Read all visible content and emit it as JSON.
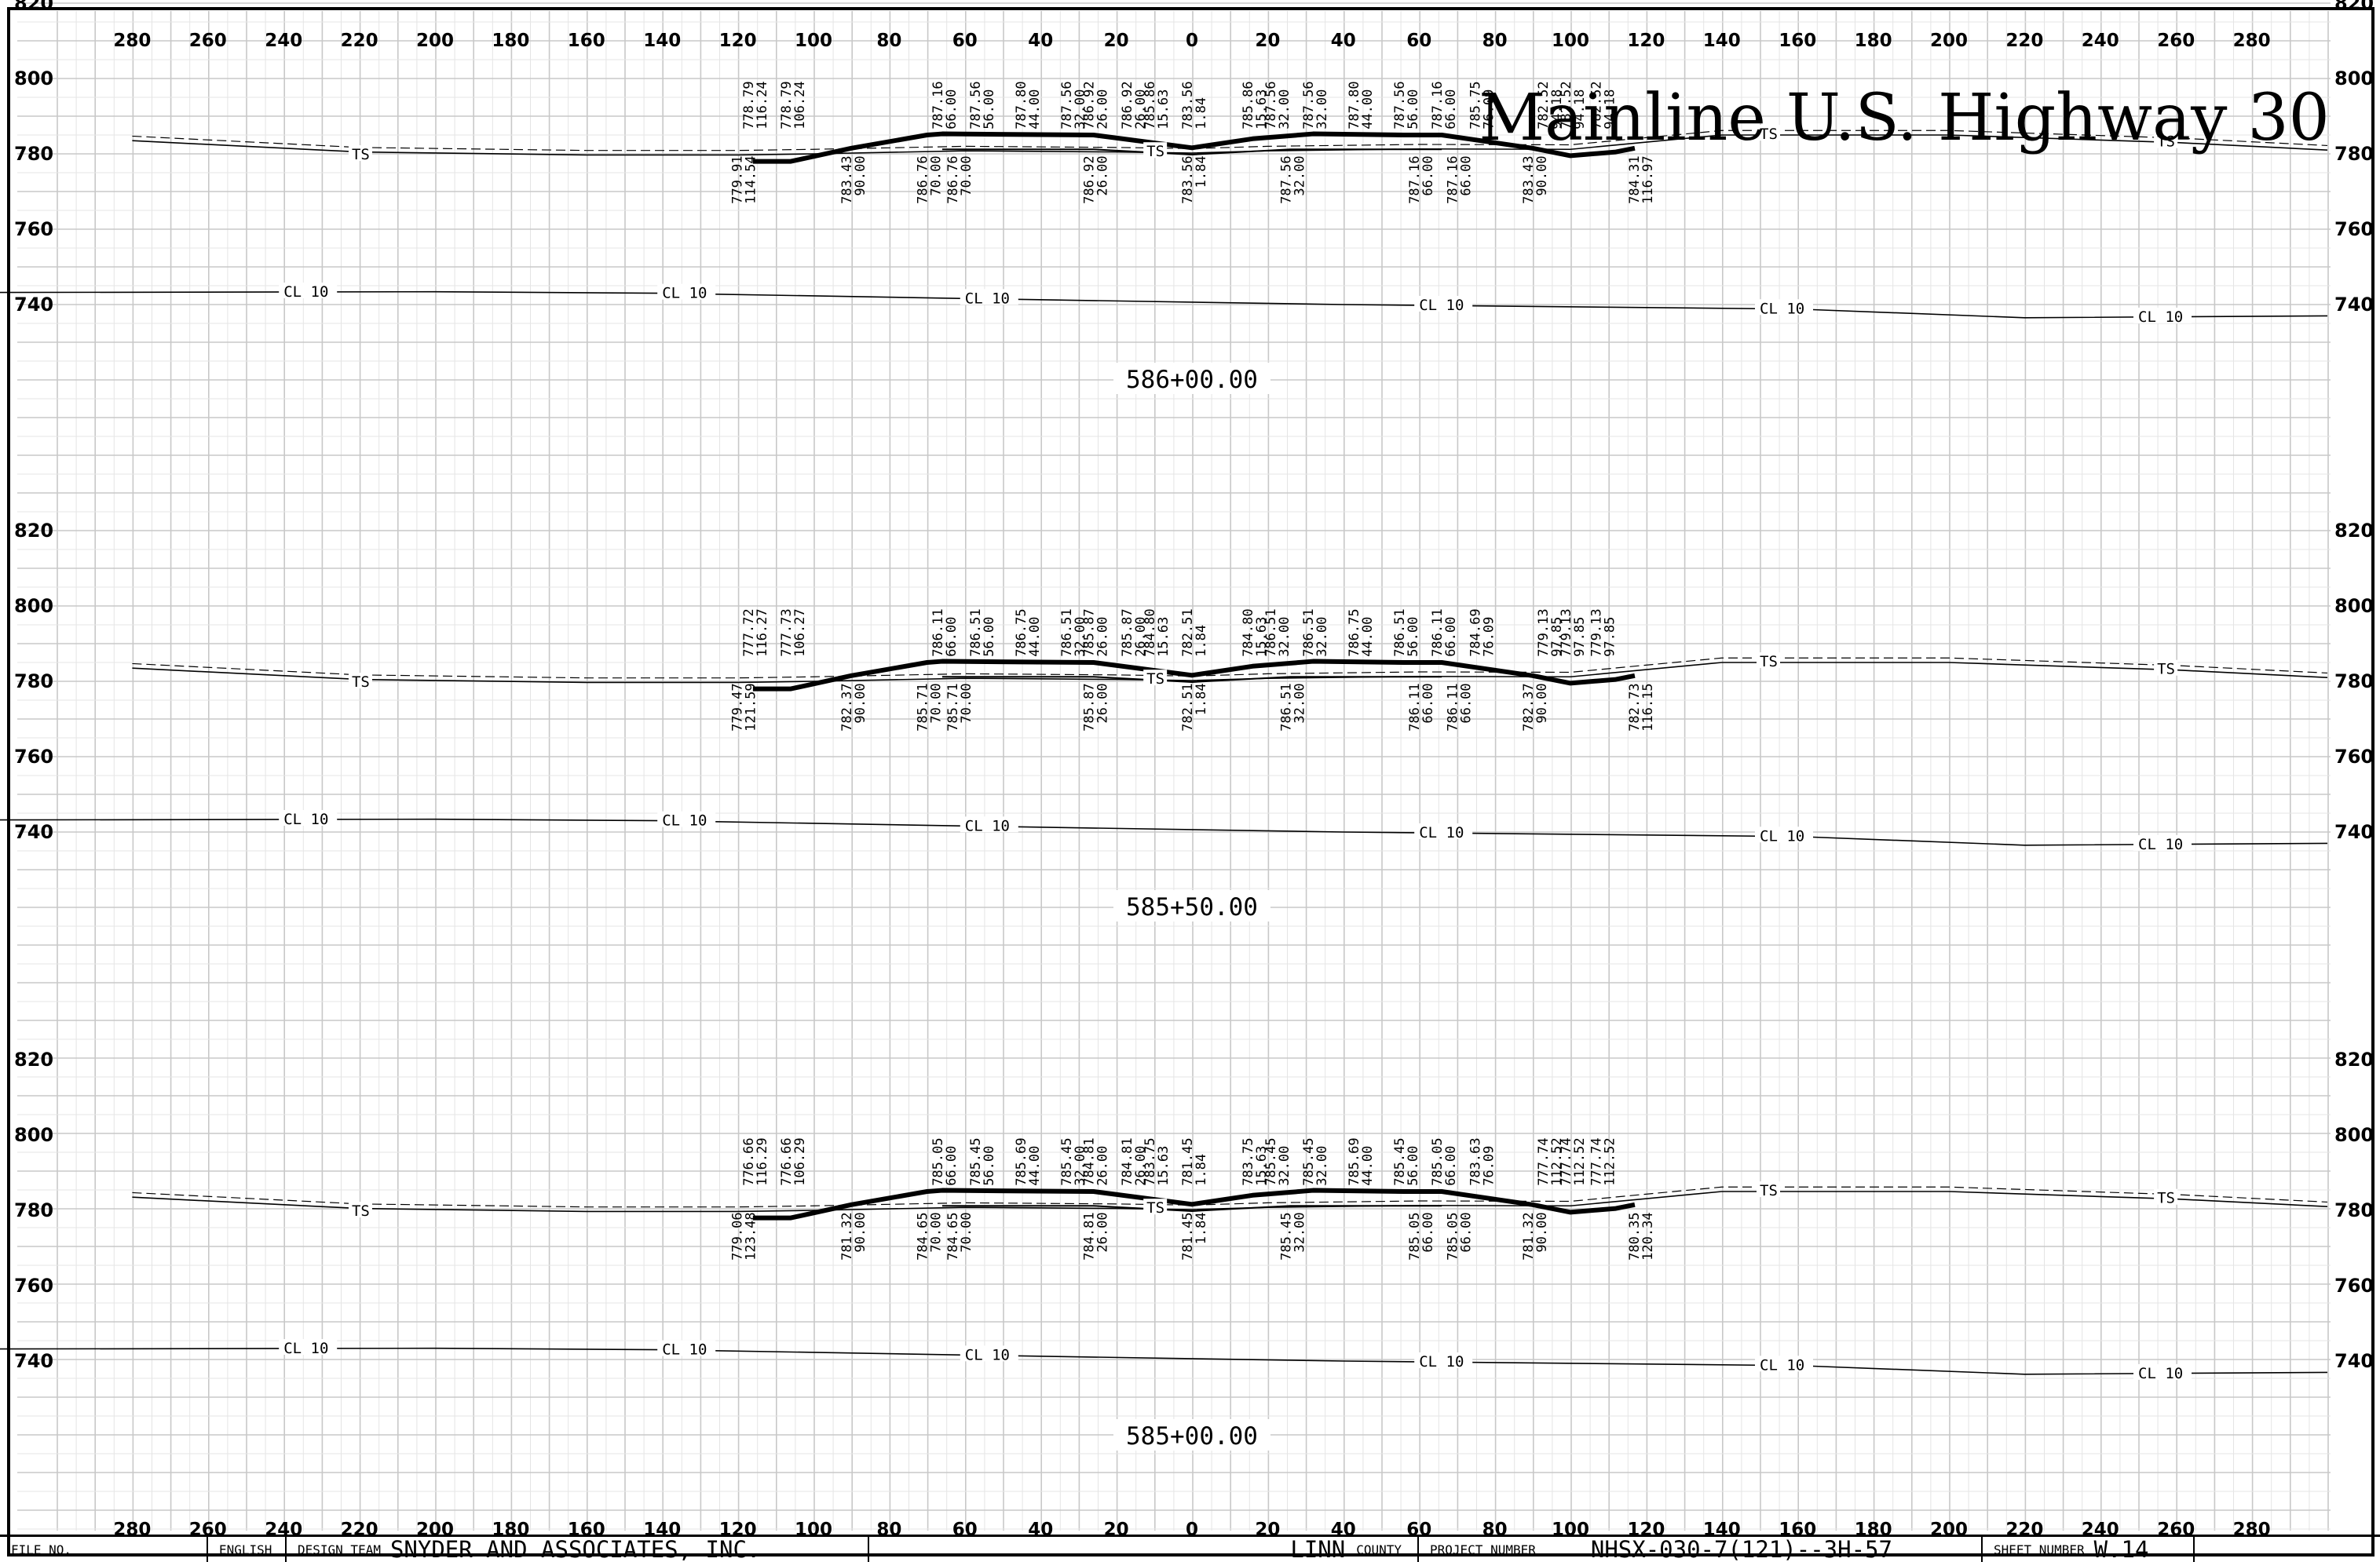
{
  "sheet_title": "Mainline U.S. Highway 30",
  "offsets_top": [
    "280",
    "260",
    "240",
    "220",
    "200",
    "180",
    "160",
    "140",
    "120",
    "100",
    "80",
    "60",
    "40",
    "20",
    "0",
    "20",
    "40",
    "60",
    "80",
    "100",
    "120",
    "140",
    "160",
    "180",
    "200",
    "220",
    "240",
    "260",
    "280"
  ],
  "offsets_bottom": [
    "280",
    "260",
    "240",
    "220",
    "200",
    "180",
    "160",
    "140",
    "120",
    "100",
    "80",
    "60",
    "40",
    "20",
    "0",
    "20",
    "40",
    "60",
    "80",
    "100",
    "120",
    "140",
    "160",
    "180",
    "200",
    "220",
    "240",
    "260",
    "280"
  ],
  "sections": [
    {
      "station": "586+00.00",
      "elevation_labels": [
        "820",
        "800",
        "780",
        "760",
        "740"
      ],
      "cl_label": "CL 10",
      "ts_label": "TS",
      "profile_labels": [
        {
          "text": "778.79\n116.24"
        },
        {
          "text": "778.79\n106.24"
        },
        {
          "text": "779.91\n114.54"
        },
        {
          "text": "783.43\n90.00"
        },
        {
          "text": "786.76\n70.00"
        },
        {
          "text": "787.16\n66.00"
        },
        {
          "text": "787.56\n56.00"
        },
        {
          "text": "787.80\n44.00"
        },
        {
          "text": "787.56\n32.00"
        },
        {
          "text": "786.92\n26.00"
        },
        {
          "text": "783.56\n1.84"
        },
        {
          "text": "783.56\n1.84"
        },
        {
          "text": "785.86\n15.63"
        },
        {
          "text": "787.56\n32.00"
        },
        {
          "text": "787.80\n44.00"
        },
        {
          "text": "787.56\n56.00"
        },
        {
          "text": "787.16\n66.00"
        },
        {
          "text": "785.75\n76.09"
        },
        {
          "text": "782.52\n94.18"
        },
        {
          "text": "783.43\n90.00"
        },
        {
          "text": "784.31\n116.97"
        }
      ]
    },
    {
      "station": "585+50.00",
      "elevation_labels": [
        "820",
        "800",
        "780",
        "760",
        "740"
      ],
      "cl_label": "CL 10",
      "ts_label": "TS",
      "profile_labels": [
        {
          "text": "777.72\n116.27"
        },
        {
          "text": "777.73\n106.27"
        },
        {
          "text": "779.47\n121.59"
        },
        {
          "text": "782.37\n90.00"
        },
        {
          "text": "785.71\n70.00"
        },
        {
          "text": "786.11\n66.00"
        },
        {
          "text": "786.51\n56.00"
        },
        {
          "text": "786.75\n44.00"
        },
        {
          "text": "786.51\n32.00"
        },
        {
          "text": "785.87\n26.00"
        },
        {
          "text": "782.51\n1.84"
        },
        {
          "text": "782.51\n1.84"
        },
        {
          "text": "784.80\n15.63"
        },
        {
          "text": "786.51\n32.00"
        },
        {
          "text": "786.75\n44.00"
        },
        {
          "text": "786.51\n56.00"
        },
        {
          "text": "786.11\n66.00"
        },
        {
          "text": "784.69\n76.09"
        },
        {
          "text": "779.13\n97.85"
        },
        {
          "text": "782.37\n90.00"
        },
        {
          "text": "782.73\n116.15"
        }
      ]
    },
    {
      "station": "585+00.00",
      "elevation_labels": [
        "820",
        "800",
        "780",
        "760",
        "740"
      ],
      "cl_label": "CL 10",
      "ts_label": "TS",
      "profile_labels": [
        {
          "text": "776.66\n116.29"
        },
        {
          "text": "776.66\n106.29"
        },
        {
          "text": "779.06\n123.48"
        },
        {
          "text": "781.32\n90.00"
        },
        {
          "text": "784.65\n70.00"
        },
        {
          "text": "785.05\n66.00"
        },
        {
          "text": "785.45\n56.00"
        },
        {
          "text": "785.69\n44.00"
        },
        {
          "text": "785.45\n32.00"
        },
        {
          "text": "784.81\n26.00"
        },
        {
          "text": "781.45\n1.84"
        },
        {
          "text": "781.45\n1.84"
        },
        {
          "text": "783.75\n15.63"
        },
        {
          "text": "785.45\n32.00"
        },
        {
          "text": "785.69\n44.00"
        },
        {
          "text": "785.45\n56.00"
        },
        {
          "text": "785.05\n66.00"
        },
        {
          "text": "783.63\n76.09"
        },
        {
          "text": "777.74\n112.52"
        },
        {
          "text": "781.32\n90.00"
        },
        {
          "text": "780.35\n120.34"
        }
      ]
    }
  ],
  "title_block": {
    "file_no_label": "FILE NO.",
    "units": "ENGLISH",
    "design_team_label": "DESIGN TEAM",
    "design_team": "SNYDER AND ASSOCIATES, INC.",
    "county": "LINN",
    "county_label": "COUNTY",
    "project_number_label": "PROJECT NUMBER",
    "project_number": "NHSX-030-7(121)--3H-57",
    "sheet_number_label": "SHEET NUMBER",
    "sheet_number": "W.14"
  }
}
